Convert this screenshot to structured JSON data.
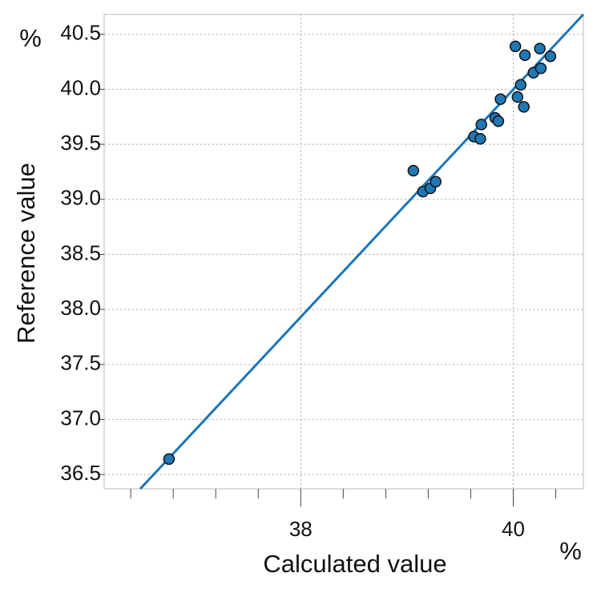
{
  "chart_data": {
    "type": "scatter",
    "y_unit": "%",
    "x_unit": "%",
    "ylabel": "Reference value",
    "xlabel": "Calculated value",
    "xlim": [
      36.15,
      40.66
    ],
    "ylim": [
      36.37,
      40.68
    ],
    "xticks": [
      38,
      40
    ],
    "xminorticks": [
      36.4,
      36.8,
      37.2,
      37.6,
      38.4,
      38.8,
      39.2,
      39.6,
      40.4
    ],
    "yticks": [
      36.5,
      {
        "value": 37,
        "label": "37.0"
      },
      37.5,
      {
        "value": 38,
        "label": "38.0"
      },
      38.5,
      {
        "value": 39,
        "label": "39.0"
      },
      39.5,
      {
        "value": 40,
        "label": "40.0"
      },
      40.5
    ],
    "grid": true,
    "color": "#1f77b4",
    "line_color": "#1b75bb",
    "fit_line": {
      "x": [
        36.49,
        40.66
      ],
      "y": [
        36.37,
        40.68
      ]
    },
    "x": [
      36.76,
      39.06,
      39.15,
      39.22,
      39.27,
      39.63,
      39.69,
      39.7,
      39.83,
      39.86,
      39.88,
      40.02,
      40.04,
      40.07,
      40.1,
      40.11,
      40.19,
      40.25,
      40.26,
      40.35
    ],
    "values": [
      36.64,
      39.26,
      39.07,
      39.1,
      39.16,
      39.57,
      39.55,
      39.68,
      39.74,
      39.71,
      39.91,
      40.39,
      39.93,
      40.04,
      39.84,
      40.31,
      40.15,
      40.37,
      40.19,
      40.3
    ]
  }
}
